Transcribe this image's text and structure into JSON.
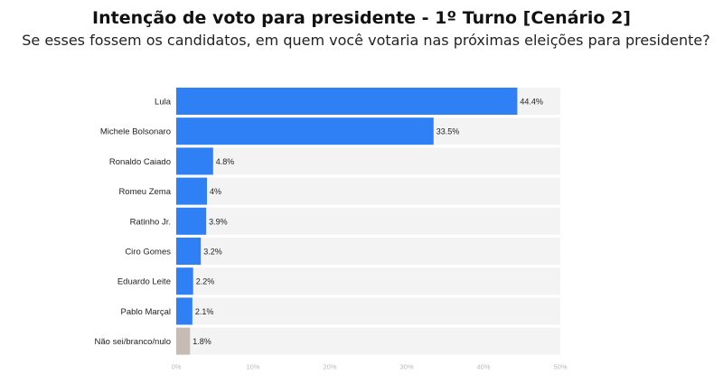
{
  "chart_data": {
    "type": "bar",
    "orientation": "horizontal",
    "title": "Intenção de voto para presidente - 1º Turno [Cenário 2]",
    "subtitle": "Se esses fossem os candidatos, em quem você votaria nas próximas eleições para presidente?",
    "categories": [
      "Lula",
      "Michele Bolsonaro",
      "Ronaldo Caiado",
      "Romeu Zema",
      "Ratinho Jr.",
      "Ciro Gomes",
      "Eduardo Leite",
      "Pablo Marçal",
      "Não sei/branco/nulo"
    ],
    "values": [
      44.4,
      33.5,
      4.8,
      4,
      3.9,
      3.2,
      2.2,
      2.1,
      1.8
    ],
    "value_labels": [
      "44.4%",
      "33.5%",
      "4.8%",
      "4%",
      "3.9%",
      "3.2%",
      "2.2%",
      "2.1%",
      "1.8%"
    ],
    "xlim": [
      0,
      50
    ],
    "xticks": [
      0,
      10,
      20,
      30,
      40,
      50
    ],
    "xtick_labels": [
      "0%",
      "10%",
      "20%",
      "30%",
      "40%",
      "50%"
    ],
    "bar_colors": [
      "#2f80f5",
      "#2f80f5",
      "#2f80f5",
      "#2f80f5",
      "#2f80f5",
      "#2f80f5",
      "#2f80f5",
      "#2f80f5",
      "#c7bcb3"
    ],
    "track_color": "#f3f3f3",
    "grid": false,
    "legend": "none"
  }
}
